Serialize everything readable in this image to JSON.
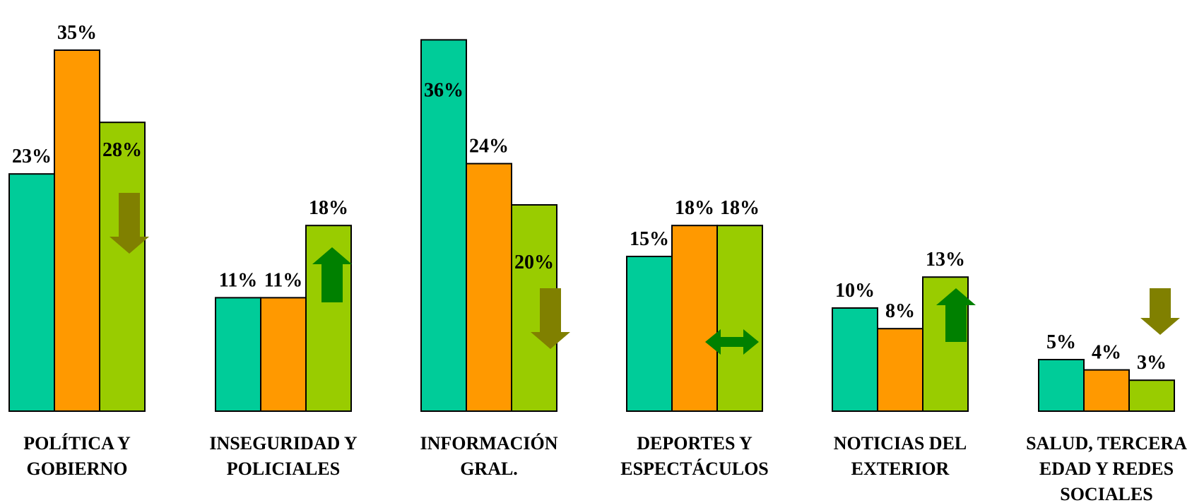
{
  "chart_data": {
    "type": "bar",
    "categories": [
      [
        "POLÍTICA Y",
        "GOBIERNO"
      ],
      [
        "INSEGURIDAD Y",
        "POLICIALES"
      ],
      [
        "INFORMACIÓN",
        "GRAL."
      ],
      [
        "DEPORTES Y",
        "ESPECTÁCULOS"
      ],
      [
        "NOTICIAS DEL",
        "EXTERIOR"
      ],
      [
        "SALUD, TERCERA",
        "EDAD Y REDES",
        "SOCIALES"
      ]
    ],
    "series": [
      {
        "color": "#00CC99",
        "values": [
          23,
          11,
          36,
          15,
          10,
          5
        ],
        "labels": [
          "23%",
          "11%",
          "36%",
          "15%",
          "10%",
          "5%"
        ]
      },
      {
        "color": "#FF9900",
        "values": [
          35,
          11,
          24,
          18,
          8,
          4
        ],
        "labels": [
          "35%",
          "11%",
          "24%",
          "18%",
          "8%",
          "4%"
        ]
      },
      {
        "color": "#99CC00",
        "values": [
          28,
          18,
          20,
          18,
          13,
          3
        ],
        "labels": [
          "28%",
          "18%",
          "20%",
          "18%",
          "13%",
          "3%"
        ]
      }
    ],
    "ylim": [
      0,
      36
    ],
    "grid": false,
    "legend": "none",
    "trend_arrows": [
      {
        "category_index": 0,
        "direction": "down",
        "color": "#808000"
      },
      {
        "category_index": 1,
        "direction": "up",
        "color": "#008000"
      },
      {
        "category_index": 2,
        "direction": "down",
        "color": "#808000"
      },
      {
        "category_index": 3,
        "direction": "both",
        "color": "#008000"
      },
      {
        "category_index": 4,
        "direction": "up",
        "color": "#008000"
      },
      {
        "category_index": 5,
        "direction": "down",
        "color": "#808000"
      }
    ]
  }
}
